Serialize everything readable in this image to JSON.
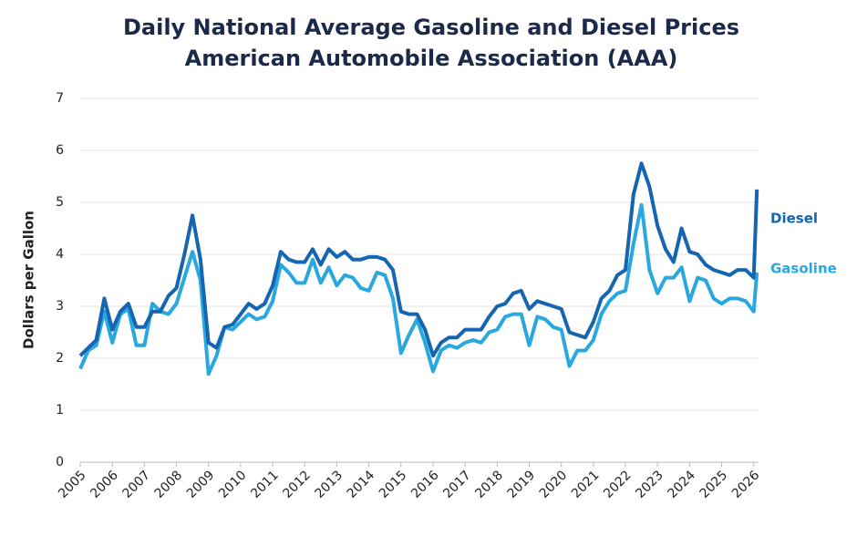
{
  "chart_data": {
    "type": "line",
    "title": "Daily National Average Gasoline and Diesel Prices",
    "subtitle": "American Automobile Association (AAA)",
    "y_label": "Dollars per Gallon",
    "x": [
      2005,
      2005.25,
      2005.5,
      2005.75,
      2006,
      2006.25,
      2006.5,
      2006.75,
      2007,
      2007.25,
      2007.5,
      2007.75,
      2008,
      2008.25,
      2008.5,
      2008.75,
      2009,
      2009.25,
      2009.5,
      2009.75,
      2010,
      2010.25,
      2010.5,
      2010.75,
      2011,
      2011.25,
      2011.5,
      2011.75,
      2012,
      2012.25,
      2012.5,
      2012.75,
      2013,
      2013.25,
      2013.5,
      2013.75,
      2014,
      2014.25,
      2014.5,
      2014.75,
      2015,
      2015.25,
      2015.5,
      2015.75,
      2016,
      2016.25,
      2016.5,
      2016.75,
      2017,
      2017.25,
      2017.5,
      2017.75,
      2018,
      2018.25,
      2018.5,
      2018.75,
      2019,
      2019.25,
      2019.5,
      2019.75,
      2020,
      2020.25,
      2020.5,
      2020.75,
      2021,
      2021.25,
      2021.5,
      2021.75,
      2022,
      2022.25,
      2022.5,
      2022.75,
      2023,
      2023.25,
      2023.5,
      2023.75,
      2024,
      2024.25,
      2024.5,
      2024.75,
      2025,
      2025.25,
      2025.5,
      2025.75,
      2026,
      2026.1
    ],
    "series": [
      {
        "name": "Diesel",
        "color": "#1565b0",
        "values": [
          2.05,
          2.2,
          2.35,
          3.15,
          2.55,
          2.9,
          3.05,
          2.6,
          2.6,
          2.9,
          2.9,
          3.2,
          3.35,
          4.0,
          4.75,
          3.9,
          2.3,
          2.2,
          2.6,
          2.65,
          2.85,
          3.05,
          2.95,
          3.05,
          3.4,
          4.05,
          3.9,
          3.85,
          3.85,
          4.1,
          3.8,
          4.1,
          3.95,
          4.05,
          3.9,
          3.9,
          3.95,
          3.95,
          3.9,
          3.7,
          2.9,
          2.85,
          2.85,
          2.55,
          2.05,
          2.3,
          2.4,
          2.4,
          2.55,
          2.55,
          2.55,
          2.8,
          3.0,
          3.05,
          3.25,
          3.3,
          2.95,
          3.1,
          3.05,
          3.0,
          2.95,
          2.5,
          2.45,
          2.4,
          2.7,
          3.15,
          3.3,
          3.6,
          3.7,
          5.15,
          5.75,
          5.3,
          4.55,
          4.1,
          3.85,
          4.5,
          4.05,
          4.0,
          3.8,
          3.7,
          3.65,
          3.6,
          3.7,
          3.7,
          3.55,
          5.25
        ]
      },
      {
        "name": "Gasoline",
        "color": "#29a8e0",
        "values": [
          1.8,
          2.15,
          2.25,
          2.9,
          2.3,
          2.85,
          2.95,
          2.25,
          2.25,
          3.05,
          2.9,
          2.85,
          3.05,
          3.55,
          4.05,
          3.5,
          1.7,
          2.05,
          2.6,
          2.55,
          2.7,
          2.85,
          2.75,
          2.8,
          3.1,
          3.8,
          3.65,
          3.45,
          3.45,
          3.9,
          3.45,
          3.75,
          3.4,
          3.6,
          3.55,
          3.35,
          3.3,
          3.65,
          3.6,
          3.15,
          2.1,
          2.45,
          2.75,
          2.3,
          1.75,
          2.15,
          2.25,
          2.2,
          2.3,
          2.35,
          2.3,
          2.5,
          2.55,
          2.8,
          2.85,
          2.85,
          2.25,
          2.8,
          2.75,
          2.6,
          2.55,
          1.85,
          2.15,
          2.15,
          2.35,
          2.85,
          3.1,
          3.25,
          3.3,
          4.2,
          4.95,
          3.7,
          3.25,
          3.55,
          3.55,
          3.75,
          3.1,
          3.55,
          3.5,
          3.15,
          3.05,
          3.15,
          3.15,
          3.1,
          2.9,
          3.65
        ]
      }
    ],
    "xlim": [
      2005,
      2026.15
    ],
    "xticks": [
      2005,
      2006,
      2007,
      2008,
      2009,
      2010,
      2011,
      2012,
      2013,
      2014,
      2015,
      2016,
      2017,
      2018,
      2019,
      2020,
      2021,
      2022,
      2023,
      2024,
      2025,
      2026
    ],
    "ylim": [
      0,
      7
    ],
    "yticks": [
      0,
      1,
      2,
      3,
      4,
      5,
      6,
      7
    ],
    "grid": true
  }
}
